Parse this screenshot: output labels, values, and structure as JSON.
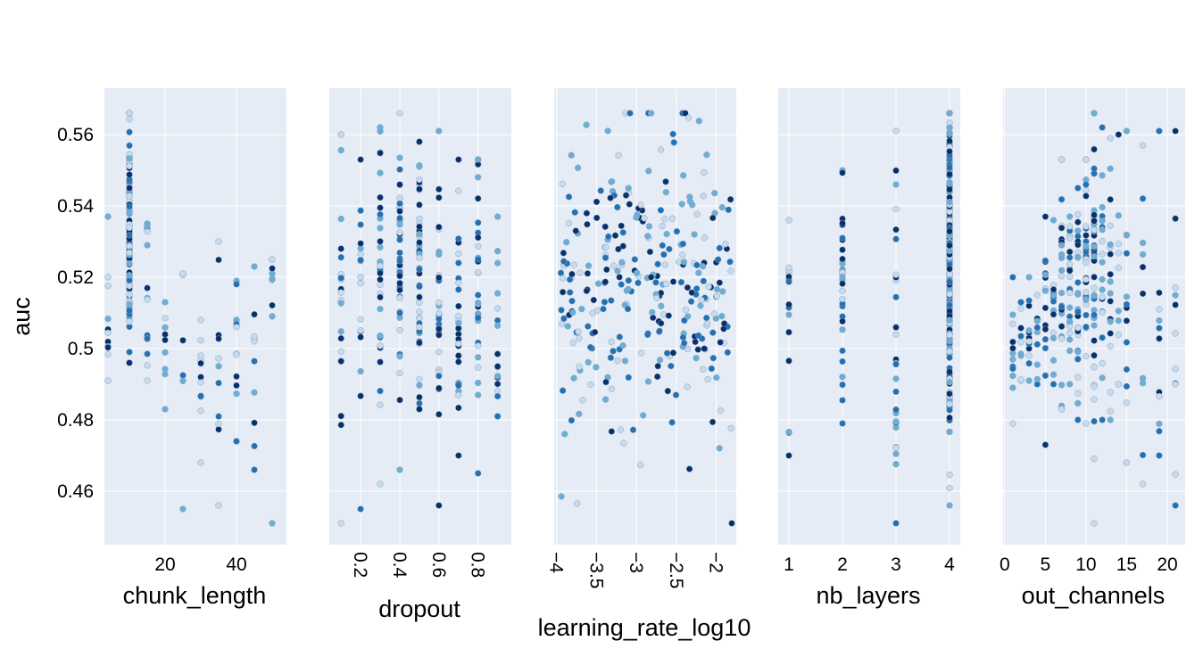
{
  "colors": {
    "plot_bg": "#e5ecf6",
    "grid": "#ffffff",
    "point_dark": "#08306b",
    "point_mid": "#2171b5",
    "point_light": "#6baed6",
    "point_pale": "#c6dbef",
    "point_edge": "#8aa0b8"
  },
  "chart_data": {
    "type": "scatter",
    "chart_kind": "slice plot",
    "ylabel": "auc",
    "ylim": [
      0.445,
      0.573
    ],
    "yticks": [
      0.46,
      0.48,
      0.5,
      0.52,
      0.54,
      0.56
    ],
    "ytick_labels": [
      "0.46",
      "0.48",
      "0.5",
      "0.52",
      "0.54",
      "0.56"
    ],
    "grid": true,
    "legend": "none",
    "color_encoding": "trial order (lighter = earlier trials, darker = later trials)",
    "panels": [
      {
        "xlabel": "chunk_length",
        "xlim": [
          3,
          54
        ],
        "xticks": [
          20,
          40
        ],
        "xtick_labels": [
          "20",
          "40"
        ],
        "tick_rotation": 0,
        "seed": 11,
        "clusters": [
          {
            "x": 4,
            "n": 12,
            "ymin": 0.491,
            "ymax": 0.537,
            "center": 0.512,
            "spread": 0.012
          },
          {
            "x": 10,
            "n": 105,
            "ymin": 0.496,
            "ymax": 0.566,
            "center": 0.532,
            "spread": 0.016
          },
          {
            "x": 15,
            "n": 18,
            "ymin": 0.491,
            "ymax": 0.535,
            "center": 0.515,
            "spread": 0.012
          },
          {
            "x": 20,
            "n": 9,
            "ymin": 0.483,
            "ymax": 0.513,
            "center": 0.5,
            "spread": 0.009
          },
          {
            "x": 25,
            "n": 7,
            "ymin": 0.455,
            "ymax": 0.521,
            "center": 0.498,
            "spread": 0.015
          },
          {
            "x": 30,
            "n": 11,
            "ymin": 0.468,
            "ymax": 0.508,
            "center": 0.49,
            "spread": 0.01
          },
          {
            "x": 35,
            "n": 11,
            "ymin": 0.456,
            "ymax": 0.53,
            "center": 0.49,
            "spread": 0.013
          },
          {
            "x": 40,
            "n": 14,
            "ymin": 0.474,
            "ymax": 0.519,
            "center": 0.494,
            "spread": 0.011
          },
          {
            "x": 45,
            "n": 10,
            "ymin": 0.466,
            "ymax": 0.523,
            "center": 0.49,
            "spread": 0.013
          },
          {
            "x": 50,
            "n": 9,
            "ymin": 0.451,
            "ymax": 0.525,
            "center": 0.5,
            "spread": 0.016
          }
        ]
      },
      {
        "xlabel": "dropout",
        "xlim": [
          0.04,
          0.97
        ],
        "xticks": [
          0.2,
          0.4,
          0.6,
          0.8
        ],
        "xtick_labels": [
          "0.2",
          "0.4",
          "0.6",
          "0.8"
        ],
        "tick_rotation": 90,
        "seed": 23,
        "clusters": [
          {
            "x": 0.1,
            "n": 22,
            "ymin": 0.451,
            "ymax": 0.56,
            "center": 0.512,
            "spread": 0.022
          },
          {
            "x": 0.2,
            "n": 18,
            "ymin": 0.455,
            "ymax": 0.553,
            "center": 0.512,
            "spread": 0.018
          },
          {
            "x": 0.3,
            "n": 34,
            "ymin": 0.462,
            "ymax": 0.562,
            "center": 0.52,
            "spread": 0.02
          },
          {
            "x": 0.4,
            "n": 42,
            "ymin": 0.466,
            "ymax": 0.566,
            "center": 0.522,
            "spread": 0.02
          },
          {
            "x": 0.5,
            "n": 48,
            "ymin": 0.483,
            "ymax": 0.558,
            "center": 0.525,
            "spread": 0.018
          },
          {
            "x": 0.6,
            "n": 30,
            "ymin": 0.456,
            "ymax": 0.561,
            "center": 0.515,
            "spread": 0.02
          },
          {
            "x": 0.7,
            "n": 30,
            "ymin": 0.47,
            "ymax": 0.553,
            "center": 0.512,
            "spread": 0.018
          },
          {
            "x": 0.8,
            "n": 32,
            "ymin": 0.465,
            "ymax": 0.553,
            "center": 0.51,
            "spread": 0.02
          },
          {
            "x": 0.9,
            "n": 18,
            "ymin": 0.481,
            "ymax": 0.537,
            "center": 0.503,
            "spread": 0.012
          }
        ]
      },
      {
        "xlabel": "learning_rate_log10",
        "xlim": [
          -4.03,
          -1.75
        ],
        "xticks": [
          -4,
          -3.5,
          -3,
          -2.5,
          -2
        ],
        "xtick_labels": [
          "−4",
          "−3.5",
          "−3",
          "−2.5",
          "−2"
        ],
        "tick_rotation": 90,
        "seed": 37,
        "scatter": {
          "n": 300,
          "xmin": -3.97,
          "xmax": -1.8,
          "ymin": 0.451,
          "ymax": 0.566,
          "center": 0.518,
          "spread": 0.021
        }
      },
      {
        "xlabel": "nb_layers",
        "xlim": [
          0.8,
          4.2
        ],
        "xticks": [
          1,
          2,
          3,
          4
        ],
        "xtick_labels": [
          "1",
          "2",
          "3",
          "4"
        ],
        "tick_rotation": 0,
        "seed": 53,
        "clusters": [
          {
            "x": 1,
            "n": 16,
            "ymin": 0.47,
            "ymax": 0.536,
            "center": 0.507,
            "spread": 0.014
          },
          {
            "x": 2,
            "n": 32,
            "ymin": 0.479,
            "ymax": 0.55,
            "center": 0.515,
            "spread": 0.017
          },
          {
            "x": 3,
            "n": 28,
            "ymin": 0.451,
            "ymax": 0.561,
            "center": 0.5,
            "spread": 0.022
          },
          {
            "x": 4,
            "n": 230,
            "ymin": 0.456,
            "ymax": 0.566,
            "center": 0.524,
            "spread": 0.022
          }
        ]
      },
      {
        "xlabel": "out_channels",
        "xlim": [
          -0.2,
          22.2
        ],
        "xticks": [
          0,
          5,
          10,
          15,
          20
        ],
        "xtick_labels": [
          "0",
          "5",
          "10",
          "15",
          "20"
        ],
        "tick_rotation": 0,
        "seed": 71,
        "clusters": [
          {
            "x": 1,
            "n": 12,
            "ymin": 0.479,
            "ymax": 0.52,
            "center": 0.503,
            "spread": 0.01
          },
          {
            "x": 2,
            "n": 10,
            "ymin": 0.491,
            "ymax": 0.513,
            "center": 0.502,
            "spread": 0.006
          },
          {
            "x": 3,
            "n": 12,
            "ymin": 0.491,
            "ymax": 0.52,
            "center": 0.503,
            "spread": 0.007
          },
          {
            "x": 4,
            "n": 10,
            "ymin": 0.49,
            "ymax": 0.515,
            "center": 0.503,
            "spread": 0.007
          },
          {
            "x": 5,
            "n": 16,
            "ymin": 0.473,
            "ymax": 0.537,
            "center": 0.508,
            "spread": 0.012
          },
          {
            "x": 6,
            "n": 14,
            "ymin": 0.49,
            "ymax": 0.536,
            "center": 0.51,
            "spread": 0.011
          },
          {
            "x": 7,
            "n": 28,
            "ymin": 0.483,
            "ymax": 0.553,
            "center": 0.518,
            "spread": 0.016
          },
          {
            "x": 8,
            "n": 24,
            "ymin": 0.49,
            "ymax": 0.537,
            "center": 0.515,
            "spread": 0.012
          },
          {
            "x": 9,
            "n": 30,
            "ymin": 0.48,
            "ymax": 0.545,
            "center": 0.516,
            "spread": 0.015
          },
          {
            "x": 10,
            "n": 32,
            "ymin": 0.479,
            "ymax": 0.553,
            "center": 0.52,
            "spread": 0.016
          },
          {
            "x": 11,
            "n": 45,
            "ymin": 0.451,
            "ymax": 0.566,
            "center": 0.524,
            "spread": 0.02
          },
          {
            "x": 12,
            "n": 20,
            "ymin": 0.48,
            "ymax": 0.562,
            "center": 0.52,
            "spread": 0.02
          },
          {
            "x": 13,
            "n": 18,
            "ymin": 0.48,
            "ymax": 0.559,
            "center": 0.516,
            "spread": 0.02
          },
          {
            "x": 14,
            "n": 10,
            "ymin": 0.49,
            "ymax": 0.56,
            "center": 0.515,
            "spread": 0.02
          },
          {
            "x": 15,
            "n": 14,
            "ymin": 0.468,
            "ymax": 0.561,
            "center": 0.512,
            "spread": 0.022
          },
          {
            "x": 17,
            "n": 10,
            "ymin": 0.462,
            "ymax": 0.557,
            "center": 0.505,
            "spread": 0.022
          },
          {
            "x": 19,
            "n": 12,
            "ymin": 0.47,
            "ymax": 0.561,
            "center": 0.505,
            "spread": 0.022
          },
          {
            "x": 21,
            "n": 12,
            "ymin": 0.456,
            "ymax": 0.561,
            "center": 0.508,
            "spread": 0.025
          }
        ]
      }
    ]
  }
}
